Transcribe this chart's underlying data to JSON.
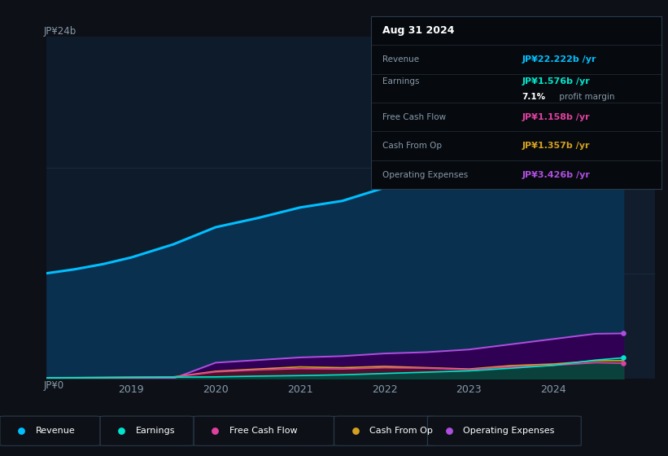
{
  "bg_color": "#0d1117",
  "plot_bg_color": "#0d1b2a",
  "years": [
    2018.0,
    2018.33,
    2018.67,
    2019.0,
    2019.5,
    2020.0,
    2020.5,
    2021.0,
    2021.5,
    2022.0,
    2022.5,
    2023.0,
    2023.5,
    2024.0,
    2024.5,
    2024.83
  ],
  "revenue": [
    8.0,
    8.3,
    8.7,
    9.2,
    10.2,
    11.5,
    12.2,
    13.0,
    13.5,
    14.5,
    16.0,
    18.5,
    20.5,
    22.2,
    23.5,
    22.222
  ],
  "earnings": [
    0.05,
    0.06,
    0.07,
    0.08,
    0.1,
    0.12,
    0.18,
    0.22,
    0.28,
    0.38,
    0.48,
    0.58,
    0.78,
    1.0,
    1.4,
    1.576
  ],
  "fcf": [
    0.05,
    0.06,
    0.07,
    0.08,
    0.1,
    0.5,
    0.65,
    0.75,
    0.72,
    0.82,
    0.78,
    0.68,
    0.88,
    1.0,
    1.2,
    1.158
  ],
  "cashfromop": [
    0.06,
    0.07,
    0.08,
    0.1,
    0.12,
    0.55,
    0.72,
    0.88,
    0.82,
    0.92,
    0.82,
    0.72,
    0.98,
    1.1,
    1.35,
    1.357
  ],
  "opex": [
    0.0,
    0.0,
    0.0,
    0.0,
    0.0,
    1.2,
    1.4,
    1.6,
    1.7,
    1.9,
    2.0,
    2.2,
    2.6,
    3.0,
    3.4,
    3.426
  ],
  "revenue_color": "#00bfff",
  "earnings_color": "#00e5cc",
  "fcf_color": "#e040a0",
  "cashfromop_color": "#d4a020",
  "opex_color": "#b04ee0",
  "revenue_fill": "#0a3050",
  "earnings_fill": "#004a40",
  "fcf_fill": "#501030",
  "cashfromop_fill": "#3a2800",
  "opex_fill": "#300055",
  "grid_color": "#1e2d40",
  "text_color": "#8899aa",
  "highlight_x_start": 2023.58,
  "ylim": [
    0,
    26
  ],
  "xlim": [
    2018.0,
    2025.2
  ],
  "ytop_label": "JP¥24b",
  "yzero_label": "JP¥0",
  "xtick_positions": [
    2019,
    2020,
    2021,
    2022,
    2023,
    2024
  ],
  "xtick_labels": [
    "2019",
    "2020",
    "2021",
    "2022",
    "2023",
    "2024"
  ],
  "info_date": "Aug 31 2024",
  "info_rows": [
    {
      "label": "Revenue",
      "value": "JP¥22.222b",
      "unit": "/yr",
      "color": "#00bfff",
      "margin": null
    },
    {
      "label": "Earnings",
      "value": "JP¥1.576b",
      "unit": "/yr",
      "color": "#00e5cc",
      "margin": "7.1% profit margin"
    },
    {
      "label": "Free Cash Flow",
      "value": "JP¥1.158b",
      "unit": "/yr",
      "color": "#e040a0",
      "margin": null
    },
    {
      "label": "Cash From Op",
      "value": "JP¥1.357b",
      "unit": "/yr",
      "color": "#d4a020",
      "margin": null
    },
    {
      "label": "Operating Expenses",
      "value": "JP¥3.426b",
      "unit": "/yr",
      "color": "#b04ee0",
      "margin": null
    }
  ],
  "legend_items": [
    {
      "label": "Revenue",
      "color": "#00bfff"
    },
    {
      "label": "Earnings",
      "color": "#00e5cc"
    },
    {
      "label": "Free Cash Flow",
      "color": "#e040a0"
    },
    {
      "label": "Cash From Op",
      "color": "#d4a020"
    },
    {
      "label": "Operating Expenses",
      "color": "#b04ee0"
    }
  ]
}
